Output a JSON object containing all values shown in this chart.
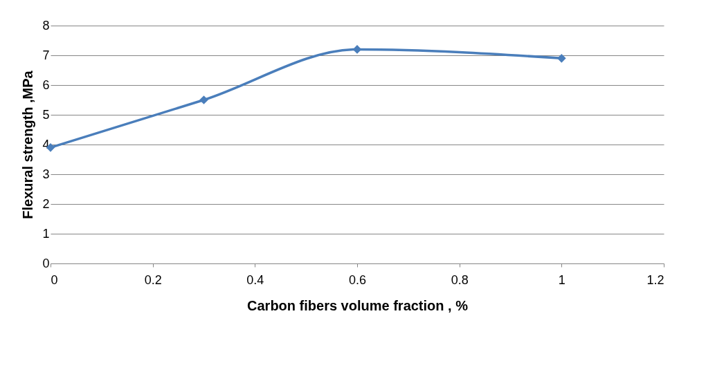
{
  "chart_data": {
    "type": "line",
    "xlabel": "Carbon fibers volume fraction , %",
    "ylabel": "Flexural strength ,MPa",
    "x": [
      0,
      0.3,
      0.6,
      1
    ],
    "series": [
      {
        "color": "#4a7ebb",
        "values": [
          3.9,
          5.5,
          7.2,
          6.9
        ]
      }
    ],
    "xlim": [
      0,
      1.2
    ],
    "xticks": [
      0,
      0.2,
      0.4,
      0.6,
      0.8,
      1,
      1.2
    ],
    "ylim": [
      0,
      8
    ],
    "yticks": [
      0,
      1,
      2,
      3,
      4,
      5,
      6,
      7,
      8
    ],
    "grid": "y",
    "marker": "diamond",
    "line_style": "solid"
  }
}
